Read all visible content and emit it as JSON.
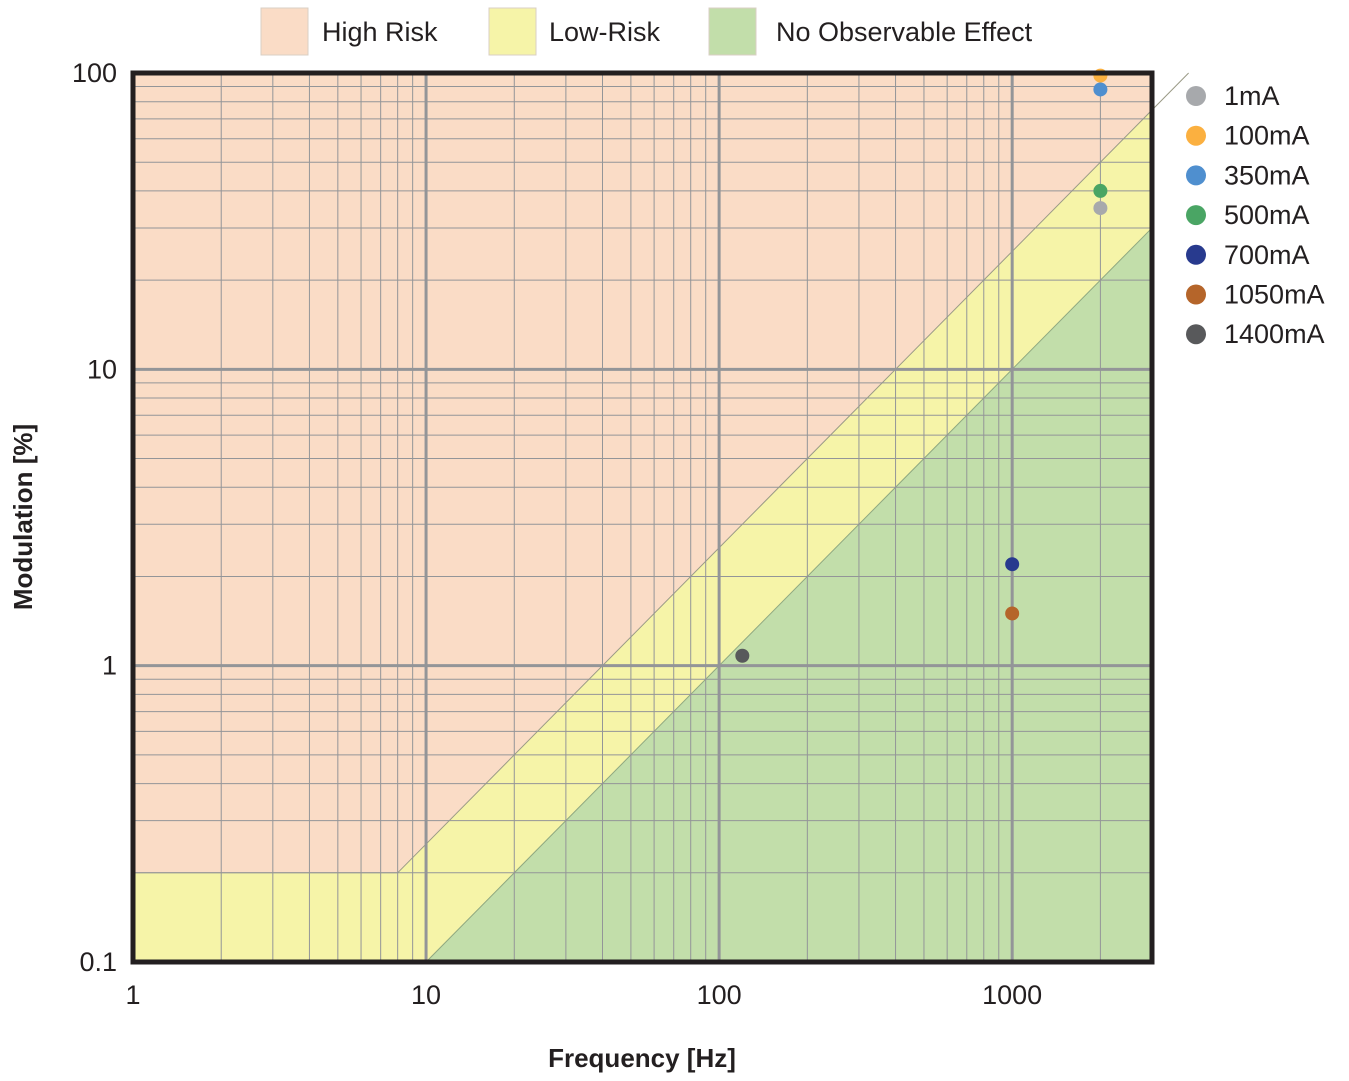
{
  "chart_data": {
    "type": "scatter",
    "xlabel": "Frequency [Hz]",
    "ylabel": "Modulation [%]",
    "x_scale": "log",
    "y_scale": "log",
    "xlim": [
      1,
      3000
    ],
    "ylim": [
      0.1,
      100
    ],
    "x_ticks": [
      {
        "value": 1,
        "label": "1"
      },
      {
        "value": 10,
        "label": "10"
      },
      {
        "value": 100,
        "label": "100"
      },
      {
        "value": 1000,
        "label": "1000"
      }
    ],
    "y_ticks": [
      {
        "value": 0.1,
        "label": "0.1"
      },
      {
        "value": 1,
        "label": "1"
      },
      {
        "value": 10,
        "label": "10"
      },
      {
        "value": 100,
        "label": "100"
      }
    ],
    "grid": true,
    "regions": [
      {
        "name": "High Risk",
        "color": "#fadcc6"
      },
      {
        "name": "Low-Risk",
        "color": "#f6f4a8"
      },
      {
        "name": "No Observable Effect",
        "color": "#c2deaa"
      }
    ],
    "region_boundaries": {
      "high_risk_lower_bound": [
        [
          1,
          0.2
        ],
        [
          8,
          0.2
        ],
        [
          3000,
          75
        ]
      ],
      "no_effect_upper_bound": [
        [
          10,
          0.1
        ],
        [
          3000,
          30
        ]
      ]
    },
    "region_legend_position": "top-center",
    "series_legend_position": "right",
    "series": [
      {
        "name": "1mA",
        "color": "#a7a9ac",
        "points": [
          [
            2000,
            35
          ]
        ]
      },
      {
        "name": "100mA",
        "color": "#fbb040",
        "points": [
          [
            2000,
            98
          ]
        ]
      },
      {
        "name": "350mA",
        "color": "#4f8fcf",
        "points": [
          [
            2000,
            88
          ]
        ]
      },
      {
        "name": "500mA",
        "color": "#4aa564",
        "points": [
          [
            2000,
            40
          ]
        ]
      },
      {
        "name": "700mA",
        "color": "#283a8e",
        "points": [
          [
            1000,
            2.2
          ]
        ]
      },
      {
        "name": "1050mA",
        "color": "#b5652a",
        "points": [
          [
            1000,
            1.5
          ]
        ]
      },
      {
        "name": "1400mA",
        "color": "#58595b",
        "points": [
          [
            120,
            1.08
          ]
        ]
      }
    ]
  }
}
